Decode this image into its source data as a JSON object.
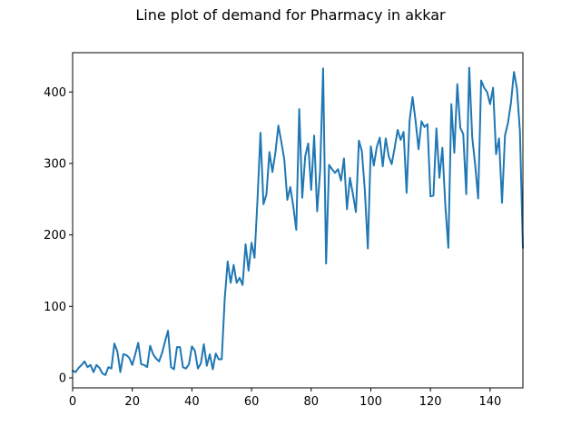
{
  "chart_data": {
    "type": "line",
    "title": "Line plot of demand for Pharmacy in akkar",
    "xlabel": "",
    "ylabel": "",
    "xlim": [
      0,
      151
    ],
    "ylim": [
      -14,
      455
    ],
    "x_ticks": [
      0,
      20,
      40,
      60,
      80,
      100,
      120,
      140
    ],
    "y_ticks": [
      0,
      100,
      200,
      300,
      400
    ],
    "grid": false,
    "series": [
      {
        "color": "#1f77b4",
        "x": [
          0,
          1,
          2,
          3,
          4,
          5,
          6,
          7,
          8,
          9,
          10,
          11,
          12,
          13,
          14,
          15,
          16,
          17,
          18,
          19,
          20,
          21,
          22,
          23,
          24,
          25,
          26,
          27,
          28,
          29,
          30,
          31,
          32,
          33,
          34,
          35,
          36,
          37,
          38,
          39,
          40,
          41,
          42,
          43,
          44,
          45,
          46,
          47,
          48,
          49,
          50,
          51,
          52,
          53,
          54,
          55,
          56,
          57,
          58,
          59,
          60,
          61,
          62,
          63,
          64,
          65,
          66,
          67,
          68,
          69,
          70,
          71,
          72,
          73,
          74,
          75,
          76,
          77,
          78,
          79,
          80,
          81,
          82,
          83,
          84,
          85,
          86,
          87,
          88,
          89,
          90,
          91,
          92,
          93,
          94,
          95,
          96,
          97,
          98,
          99,
          100,
          101,
          102,
          103,
          104,
          105,
          106,
          107,
          108,
          109,
          110,
          111,
          112,
          113,
          114,
          115,
          116,
          117,
          118,
          119,
          120,
          121,
          122,
          123,
          124,
          125,
          126,
          127,
          128,
          129,
          130,
          131,
          132,
          133,
          134,
          135,
          136,
          137,
          138,
          139,
          140,
          141,
          142,
          143,
          144,
          145,
          146,
          147,
          148,
          149,
          150,
          151
        ],
        "y": [
          10,
          8,
          14,
          18,
          23,
          15,
          18,
          8,
          18,
          14,
          6,
          4,
          15,
          13,
          48,
          37,
          8,
          33,
          32,
          28,
          18,
          33,
          49,
          19,
          18,
          15,
          45,
          33,
          27,
          23,
          35,
          51,
          66,
          15,
          12,
          43,
          43,
          15,
          13,
          19,
          44,
          38,
          13,
          20,
          47,
          17,
          33,
          12,
          34,
          26,
          26,
          110,
          163,
          133,
          158,
          133,
          140,
          130,
          187,
          150,
          189,
          168,
          250,
          343,
          243,
          257,
          316,
          288,
          315,
          353,
          330,
          305,
          249,
          267,
          240,
          207,
          376,
          252,
          310,
          328,
          263,
          339,
          233,
          290,
          433,
          160,
          298,
          292,
          287,
          292,
          276,
          307,
          236,
          280,
          257,
          232,
          332,
          317,
          262,
          181,
          324,
          297,
          323,
          336,
          296,
          335,
          310,
          299,
          322,
          347,
          333,
          344,
          259,
          360,
          393,
          360,
          320,
          359,
          351,
          355,
          254,
          255,
          349,
          280,
          322,
          240,
          182,
          383,
          315,
          411,
          350,
          341,
          257,
          434,
          337,
          298,
          251,
          416,
          406,
          400,
          383,
          406,
          313,
          335,
          245,
          339,
          357,
          385,
          428,
          405,
          345,
          182
        ]
      }
    ]
  }
}
